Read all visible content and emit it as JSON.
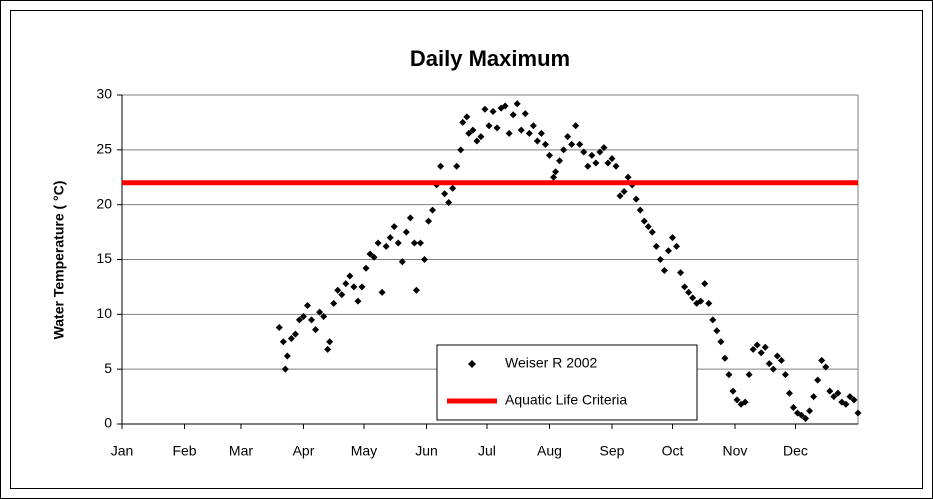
{
  "chart_data": {
    "type": "scatter",
    "title": "Daily Maximum",
    "y_label": "Water Temperature ( °C)",
    "xlim": [
      0,
      365
    ],
    "xticks": [
      {
        "value": 0,
        "label": "Jan"
      },
      {
        "value": 31,
        "label": "Feb"
      },
      {
        "value": 59,
        "label": "Mar"
      },
      {
        "value": 90,
        "label": "Apr"
      },
      {
        "value": 120,
        "label": "May"
      },
      {
        "value": 151,
        "label": "Jun"
      },
      {
        "value": 181,
        "label": "Jul"
      },
      {
        "value": 212,
        "label": "Aug"
      },
      {
        "value": 243,
        "label": "Sep"
      },
      {
        "value": 273,
        "label": "Oct"
      },
      {
        "value": 304,
        "label": "Nov"
      },
      {
        "value": 334,
        "label": "Dec"
      }
    ],
    "ylim": [
      0,
      30
    ],
    "yticks": [
      0,
      5,
      10,
      15,
      20,
      25,
      30
    ],
    "grid": true,
    "legend": "lower right",
    "series": [
      {
        "name": "Weiser R 2002",
        "color": "#000000",
        "marker": "diamond",
        "x": [
          78,
          80,
          81,
          82,
          84,
          86,
          88,
          90,
          92,
          94,
          96,
          98,
          100,
          102,
          103,
          105,
          107,
          109,
          111,
          113,
          115,
          117,
          119,
          121,
          123,
          125,
          127,
          129,
          131,
          133,
          135,
          137,
          139,
          141,
          143,
          145,
          146,
          148,
          150,
          152,
          154,
          156,
          158,
          160,
          162,
          164,
          166,
          168,
          169,
          171,
          172,
          174,
          176,
          178,
          180,
          182,
          184,
          186,
          188,
          190,
          192,
          194,
          196,
          198,
          200,
          202,
          204,
          206,
          208,
          210,
          212,
          214,
          215,
          217,
          219,
          221,
          223,
          225,
          227,
          229,
          231,
          233,
          235,
          237,
          239,
          241,
          243,
          245,
          247,
          249,
          251,
          253,
          255,
          257,
          259,
          261,
          263,
          265,
          267,
          269,
          271,
          273,
          275,
          277,
          279,
          281,
          283,
          285,
          287,
          289,
          291,
          293,
          295,
          297,
          299,
          301,
          303,
          305,
          307,
          309,
          311,
          313,
          315,
          317,
          319,
          321,
          323,
          325,
          327,
          329,
          331,
          333,
          335,
          337,
          339,
          341,
          343,
          345,
          347,
          349,
          351,
          353,
          355,
          357,
          359,
          361,
          363,
          365
        ],
        "values": [
          8.8,
          7.5,
          5.0,
          6.2,
          7.8,
          8.2,
          9.5,
          9.8,
          10.8,
          9.5,
          8.6,
          10.2,
          9.8,
          6.8,
          7.5,
          11.0,
          12.2,
          11.8,
          12.8,
          13.5,
          12.5,
          11.2,
          12.5,
          14.2,
          15.5,
          15.2,
          16.5,
          12.0,
          16.2,
          17.0,
          18.0,
          16.5,
          14.8,
          17.5,
          18.8,
          16.5,
          12.2,
          16.5,
          15.0,
          18.5,
          19.5,
          21.8,
          23.5,
          21.0,
          20.2,
          21.5,
          23.5,
          25.0,
          27.5,
          28.0,
          26.5,
          26.8,
          25.8,
          26.2,
          28.7,
          27.2,
          28.5,
          27.0,
          28.8,
          29.0,
          26.5,
          28.2,
          29.2,
          26.8,
          28.3,
          26.5,
          27.2,
          25.8,
          26.5,
          25.5,
          24.5,
          22.5,
          23.0,
          24.0,
          25.0,
          26.2,
          25.5,
          27.2,
          25.5,
          24.8,
          23.5,
          24.5,
          23.8,
          24.8,
          25.2,
          23.8,
          24.2,
          23.5,
          20.8,
          21.2,
          22.5,
          21.8,
          20.5,
          19.5,
          18.5,
          18.0,
          17.5,
          16.2,
          15.0,
          14.0,
          15.8,
          17.0,
          16.2,
          13.8,
          12.5,
          12.0,
          11.5,
          11.0,
          11.2,
          12.8,
          11.0,
          9.5,
          8.5,
          7.5,
          6.0,
          4.5,
          3.0,
          2.2,
          1.8,
          2.0,
          4.5,
          6.8,
          7.2,
          6.5,
          7.0,
          5.5,
          5.0,
          6.2,
          5.8,
          4.5,
          2.8,
          1.5,
          1.0,
          0.8,
          0.5,
          1.2,
          2.5,
          4.0,
          5.8,
          5.2,
          3.0,
          2.5,
          2.8,
          2.0,
          1.8,
          2.5,
          2.2,
          1.0
        ]
      },
      {
        "name": "Aquatic Life Criteria",
        "color": "#ff0000",
        "marker": "line",
        "x": [
          0,
          365
        ],
        "values": [
          22,
          22
        ]
      }
    ]
  }
}
